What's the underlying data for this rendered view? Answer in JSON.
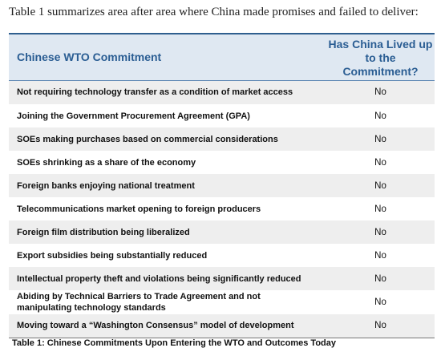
{
  "intro_text": "Table 1 summarizes area after area where China made promises and failed to deliver:",
  "table": {
    "headers": {
      "commitment": "Chinese WTO Commitment",
      "answer_line1": "Has China Lived up",
      "answer_line2": "to the",
      "answer_line3": "Commitment?"
    },
    "rows": [
      {
        "commitment": "Not requiring technology transfer as a condition of market access",
        "answer": "No"
      },
      {
        "commitment": "Joining the Government Procurement Agreement (GPA)",
        "answer": "No"
      },
      {
        "commitment": "SOEs making purchases based on commercial considerations",
        "answer": "No"
      },
      {
        "commitment": "SOEs shrinking as a share of the economy",
        "answer": "No"
      },
      {
        "commitment": "Foreign banks enjoying national treatment",
        "answer": "No"
      },
      {
        "commitment": "Telecommunications market opening to foreign producers",
        "answer": "No"
      },
      {
        "commitment": "Foreign film distribution being liberalized",
        "answer": "No"
      },
      {
        "commitment": "Export subsidies being substantially reduced",
        "answer": "No"
      },
      {
        "commitment": "Intellectual property theft and violations being significantly reduced",
        "answer": "No"
      },
      {
        "commitment_line1": "Abiding by Technical Barriers to Trade Agreement and not",
        "commitment_line2": "manipulating technology standards",
        "answer": "No"
      },
      {
        "commitment": "Moving toward a “Washington Consensus” model of development",
        "answer": "No"
      }
    ]
  },
  "caption": "Table 1: Chinese Commitments Upon Entering the WTO and Outcomes Today",
  "colors": {
    "header_background": "#dfe8f2",
    "header_text": "#2a5d93",
    "header_rule": "#2f5f8f",
    "alternate_row": "#eeeeee"
  }
}
